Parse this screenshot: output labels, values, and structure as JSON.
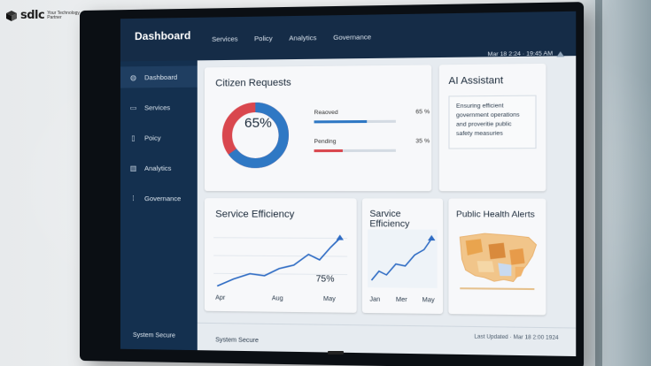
{
  "brand": {
    "logo": "sdlc",
    "tagline": "Your Technology Partner"
  },
  "header": {
    "title": "Dashboard",
    "nav": [
      "Services",
      "Policy",
      "Analytics",
      "Governance"
    ],
    "datetime": "Mar 18 2:24  ·  19:45 AM"
  },
  "sidebar": {
    "items": [
      {
        "label": "Dashboard",
        "icon": "home-icon",
        "active": true
      },
      {
        "label": "Services",
        "icon": "services-icon",
        "active": false
      },
      {
        "label": "Poicy",
        "icon": "policy-icon",
        "active": false
      },
      {
        "label": "Analytics",
        "icon": "analytics-icon",
        "active": false
      },
      {
        "label": "Governance",
        "icon": "governance-icon",
        "active": false
      }
    ],
    "footer": "System Secure"
  },
  "citizen_requests": {
    "title": "Citizen Requests",
    "donut_label": "65%",
    "rows": [
      {
        "label": "Reaoved",
        "value": "65 %",
        "fraction": 0.65,
        "color": "#2f78c4"
      },
      {
        "label": "Pending",
        "value": "35 %",
        "fraction": 0.35,
        "color": "#d9474e"
      }
    ]
  },
  "ai_assistant": {
    "title": "AI Assistant",
    "lines": [
      "Ensuring efficient",
      "government operations",
      "and proveritie public",
      "safety measuries"
    ]
  },
  "service_efficiency_1": {
    "title": "Service Efficiency",
    "value_label": "75%",
    "x_ticks": [
      "Apr",
      "Aug",
      "May"
    ]
  },
  "service_efficiency_2": {
    "title": "Sarvice Efficiency",
    "x_ticks": [
      "Jan",
      "Mer",
      "May"
    ]
  },
  "health_alerts": {
    "title": "Public Health Alerts"
  },
  "footer": {
    "left": "System Secure",
    "right": "Last Updated · Mar 18 2:00 1924"
  },
  "colors": {
    "accent_blue": "#2f78c4",
    "accent_red": "#d9474e",
    "sidebar": "#14304f",
    "chart_line": "#2f6cc4"
  }
}
